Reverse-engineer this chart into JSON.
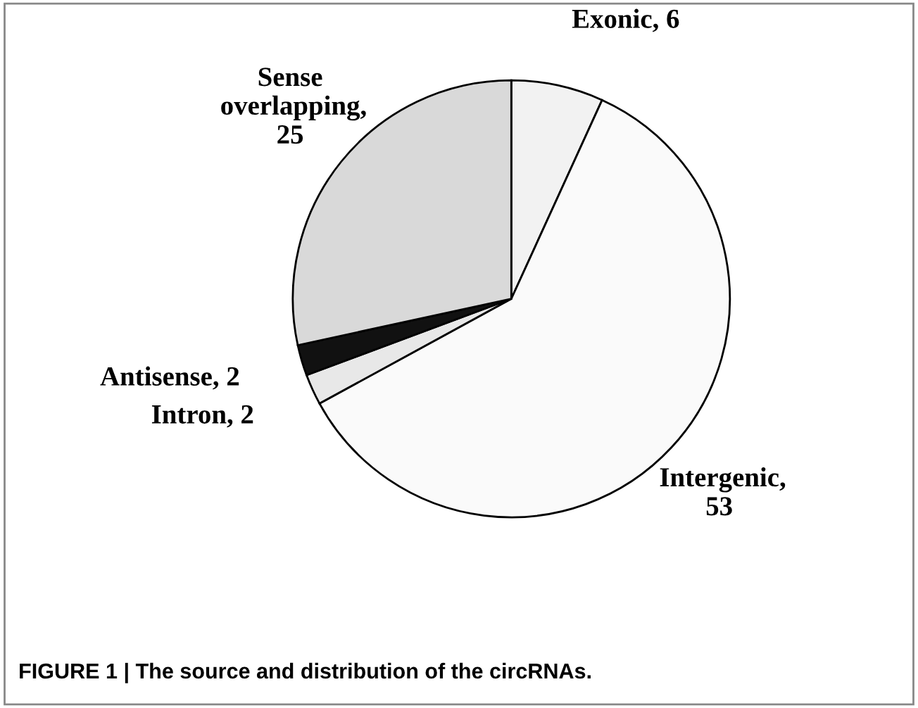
{
  "chart_data": {
    "type": "pie",
    "categories": [
      "Exonic",
      "Intergenic",
      "Intron",
      "Antisense",
      "Sense overlapping"
    ],
    "values": [
      6,
      53,
      2,
      2,
      25
    ],
    "colors": [
      "#f2f2f2",
      "#fafafa",
      "#e8e8e8",
      "#111111",
      "#d9d9d9"
    ],
    "value_labels": [
      ", 6",
      ", 53",
      ", 2",
      ", 2",
      ", 25"
    ],
    "annotations": [
      "FIGURE 1 | The source and distribution of the circRNAs."
    ]
  }
}
